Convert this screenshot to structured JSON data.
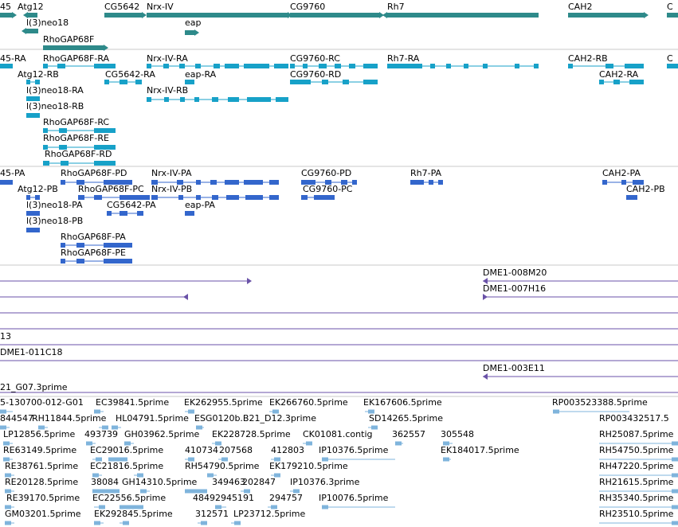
{
  "colors": {
    "gene": "#2e8a8a",
    "transcript": "#17a1c8",
    "protein": "#3366cc",
    "clone": "#6a52a8",
    "est": "#7fb4dc",
    "divider": "#c8c8c8",
    "text": "#000000"
  },
  "track1_labels": [
    "45",
    "Atg12",
    "CG5642",
    "Nrx-IV",
    "CG9760",
    "Rh7",
    "CAH2",
    "C",
    "l(3)neo18",
    "eap",
    "RhoGAP68F"
  ],
  "track2_labels": [
    "45-RA",
    "RhoGAP68F-RA",
    "Nrx-IV-RA",
    "CG9760-RC",
    "Rh7-RA",
    "CAH2-RB",
    "C",
    "Atg12-RB",
    "CG5642-RA",
    "eap-RA",
    "CG9760-RD",
    "CAH2-RA",
    "Nrx-IV-RB",
    "l(3)neo18-RA",
    "l(3)neo18-RB",
    "RhoGAP68F-RC",
    "RhoGAP68F-RE",
    "RhoGAP68F-RD"
  ],
  "track3_labels": [
    "45-PA",
    "RhoGAP68F-PD",
    "Nrx-IV-PA",
    "CG9760-PD",
    "Rh7-PA",
    "CAH2-PA",
    "Atg12-PB",
    "RhoGAP68F-PC",
    "Nrx-IV-PB",
    "CG9760-PC",
    "CAH2-PB",
    "l(3)neo18-PA",
    "CG5642-PA",
    "eap-PA",
    "l(3)neo18-PB",
    "RhoGAP68F-PA",
    "RhoGAP68F-PE"
  ],
  "track4_labels": [
    "DME1-008M20",
    "DME1-007H16"
  ],
  "track5_labels": [
    "13",
    "DME1-011C18",
    "DME1-003E11",
    "21_G07.3prime"
  ],
  "track6_labels": [
    "5-130700-012-G01",
    "EC39841.5prime",
    "EK262955.5prime",
    "EK266760.5prime",
    "EK167606.5prime",
    "RP003523388.5prime",
    "844547",
    "RH11844.5prime",
    "HL04791.5prime",
    "ESG0120b.B21_D12.3prime",
    "SD14265.5prime",
    "RP003432517.5",
    "LP12856.5prime",
    "493739",
    "GH03962.5prime",
    "EK228728.5prime",
    "CK01081.contig",
    "362557",
    "305548",
    "RH25087.5prime",
    "RE63149.5prime",
    "EC29016.5prime",
    "410734",
    "207568",
    "412803",
    "IP10376.5prime",
    "EK184017.5prime",
    "RH54750.5prime",
    "RE38761.5prime",
    "EC21816.5prime",
    "RH54790.5prime",
    "EK179210.5prime",
    "RH47220.5prime",
    "RE20128.5prime",
    "38084",
    "GH14310.5prime",
    "349463",
    "202847",
    "IP10376.3prime",
    "RH21615.5prime",
    "RE39170.5prime",
    "EC22556.5prime",
    "48492945191",
    "294757",
    "IP10076.5prime",
    "RH35340.5prime",
    "GM03201.5prime",
    "EK292845.5prime",
    "312571",
    "LP23712.5prime",
    "RH23510.5prime"
  ]
}
